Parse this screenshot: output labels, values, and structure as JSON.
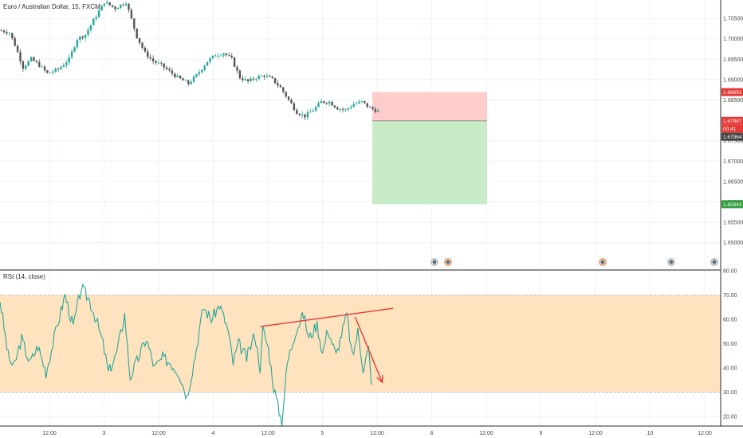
{
  "chart_data": [
    {
      "type": "candlestick",
      "title": "Euro / Australian Dollar, 15, FXCM",
      "ylim": [
        1.6435,
        1.7095
      ],
      "price_ticks": [
        "1.70500",
        "1.70000",
        "1.69500",
        "1.69000",
        "1.68500",
        "1.67500",
        "1.67000",
        "1.66500",
        "1.66000",
        "1.65500",
        "1.65000"
      ],
      "price_tick_values": [
        1.705,
        1.7,
        1.695,
        1.69,
        1.685,
        1.675,
        1.67,
        1.665,
        1.66,
        1.655,
        1.65
      ],
      "time_labels": [
        "12:00",
        "3",
        "12:00",
        "4",
        "12:00",
        "5",
        "12:00",
        "6",
        "12:00",
        "9",
        "12:00",
        "10",
        "12:00"
      ],
      "time_label_index": [
        0,
        1,
        2,
        3,
        4,
        5,
        6,
        7,
        8,
        9,
        10,
        11,
        12
      ],
      "path": [
        [
          0,
          1.702
        ],
        [
          3,
          1.7015
        ],
        [
          5,
          1.6985
        ],
        [
          8,
          1.693
        ],
        [
          11,
          1.695
        ],
        [
          14,
          1.6935
        ],
        [
          17,
          1.6915
        ],
        [
          21,
          1.6925
        ],
        [
          25,
          1.695
        ],
        [
          28,
          1.7
        ],
        [
          31,
          1.701
        ],
        [
          34,
          1.7045
        ],
        [
          38,
          1.709
        ],
        [
          42,
          1.7075
        ],
        [
          46,
          1.709
        ],
        [
          50,
          1.7005
        ],
        [
          53,
          1.6965
        ],
        [
          56,
          1.6945
        ],
        [
          59,
          1.6935
        ],
        [
          62,
          1.692
        ],
        [
          65,
          1.6905
        ],
        [
          69,
          1.689
        ],
        [
          72,
          1.691
        ],
        [
          76,
          1.6945
        ],
        [
          79,
          1.696
        ],
        [
          82,
          1.6965
        ],
        [
          85,
          1.695
        ],
        [
          88,
          1.6905
        ],
        [
          91,
          1.6895
        ],
        [
          94,
          1.6905
        ],
        [
          97,
          1.691
        ],
        [
          100,
          1.69
        ],
        [
          103,
          1.688
        ],
        [
          106,
          1.685
        ],
        [
          109,
          1.682
        ],
        [
          112,
          1.681
        ],
        [
          115,
          1.6825
        ],
        [
          118,
          1.6845
        ],
        [
          121,
          1.6845
        ],
        [
          124,
          1.683
        ],
        [
          127,
          1.6825
        ],
        [
          130,
          1.684
        ],
        [
          133,
          1.6845
        ],
        [
          136,
          1.683
        ],
        [
          139,
          1.6822
        ]
      ],
      "current_price": "1.67987",
      "countdown": "00:41",
      "bid_price": "1.67964",
      "position": {
        "type": "short",
        "entry": 1.67987,
        "stop_loss_label": "1.68691",
        "stop_loss": 1.68691,
        "take_profit_label": "1.65943",
        "take_profit": 1.65943
      },
      "event_markers": 5,
      "colors": {
        "up": "#26a69a",
        "down": "#555555",
        "stop_zone": "#ffcccc",
        "target_zone": "#c8ebc8",
        "sl_badge": "#e53935",
        "tp_badge": "#2e9e3c",
        "price_badge": "#e53935",
        "bid_badge": "#444444"
      }
    },
    {
      "type": "line",
      "title": "RSI (14, close)",
      "ylim": [
        16,
        80
      ],
      "yticks": [
        "80.00",
        "70.00",
        "60.00",
        "50.00",
        "40.00",
        "30.00",
        "20.00"
      ],
      "ytick_values": [
        80,
        70,
        60,
        50,
        40,
        30,
        20
      ],
      "overbought": 70,
      "oversold": 30,
      "path": [
        [
          0,
          68
        ],
        [
          3,
          45
        ],
        [
          5,
          40
        ],
        [
          8,
          52
        ],
        [
          11,
          42
        ],
        [
          14,
          49
        ],
        [
          17,
          38
        ],
        [
          21,
          57
        ],
        [
          24,
          70
        ],
        [
          27,
          57
        ],
        [
          30,
          73
        ],
        [
          33,
          68
        ],
        [
          36,
          58
        ],
        [
          38,
          50
        ],
        [
          40,
          38
        ],
        [
          43,
          46
        ],
        [
          46,
          62
        ],
        [
          48,
          36
        ],
        [
          51,
          44
        ],
        [
          54,
          52
        ],
        [
          57,
          40
        ],
        [
          60,
          44
        ],
        [
          63,
          42
        ],
        [
          66,
          38
        ],
        [
          69,
          28
        ],
        [
          72,
          45
        ],
        [
          75,
          65
        ],
        [
          78,
          60
        ],
        [
          81,
          66
        ],
        [
          84,
          56
        ],
        [
          86,
          42
        ],
        [
          88,
          50
        ],
        [
          91,
          44
        ],
        [
          94,
          54
        ],
        [
          96,
          40
        ],
        [
          97,
          56
        ],
        [
          99,
          48
        ],
        [
          101,
          32
        ],
        [
          103,
          22
        ],
        [
          104,
          18
        ],
        [
          106,
          42
        ],
        [
          109,
          55
        ],
        [
          112,
          62
        ],
        [
          114,
          52
        ],
        [
          117,
          58
        ],
        [
          119,
          46
        ],
        [
          121,
          56
        ],
        [
          124,
          45
        ],
        [
          126,
          54
        ],
        [
          128,
          62
        ],
        [
          130,
          44
        ],
        [
          132,
          55
        ],
        [
          134,
          40
        ],
        [
          136,
          48
        ],
        [
          137,
          33
        ]
      ],
      "line_color": "#26a69a",
      "band_color": "#ffe3bf",
      "divergence_trendline": {
        "from": [
          96,
          57
        ],
        "to": [
          145,
          64.5
        ]
      },
      "projection_arrow": {
        "from": [
          131,
          61
        ],
        "to": [
          141,
          34
        ]
      },
      "annotation_color": "#e53935"
    }
  ]
}
